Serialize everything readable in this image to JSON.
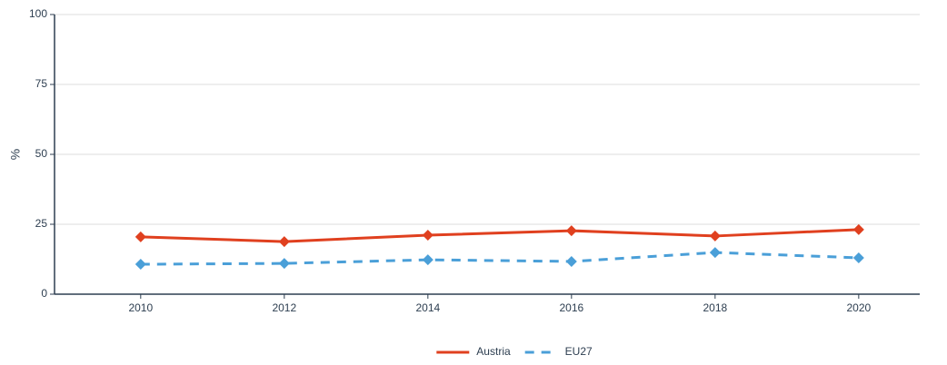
{
  "chart_data": {
    "type": "line",
    "y_label": "%",
    "x": [
      2010,
      2012,
      2014,
      2016,
      2018,
      2020
    ],
    "series": [
      {
        "name": "Austria",
        "color": "#e0401f",
        "line_style": "solid",
        "values": [
          20.5,
          18.8,
          21.1,
          22.7,
          20.8,
          23.1
        ]
      },
      {
        "name": "EU27",
        "color": "#4a9fd8",
        "line_style": "dashed",
        "values": [
          10.7,
          11.0,
          12.3,
          11.7,
          14.9,
          13.0
        ]
      }
    ],
    "xlim": [
      2008.8,
      2020.85
    ],
    "xticks": [
      2010,
      2012,
      2014,
      2016,
      2018,
      2020
    ],
    "ylim": [
      0,
      100
    ],
    "yticks": [
      0,
      25,
      50,
      75,
      100
    ],
    "grid": true,
    "legend": "bottom"
  }
}
